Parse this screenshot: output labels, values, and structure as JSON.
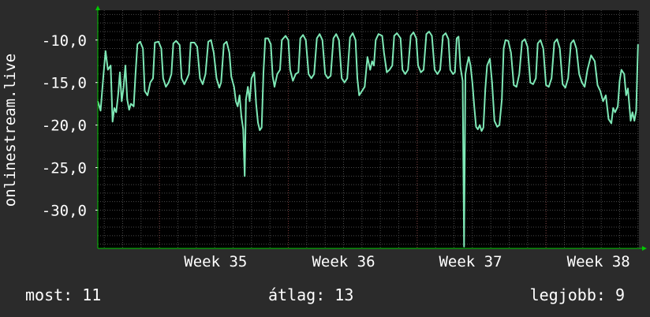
{
  "chart_data": {
    "type": "line",
    "ylabel": "onlinestream.live",
    "ylim": [
      -34.5,
      -6.5
    ],
    "yticks": [
      -10,
      -15,
      -20,
      -25,
      -30
    ],
    "ytick_labels": [
      "-10,0",
      "-15,0",
      "-20,0",
      "-25,0",
      "-30,0"
    ],
    "xlim": [
      0,
      26.85
    ],
    "xticks": [
      {
        "x": 4.5,
        "label": "Week 35"
      },
      {
        "x": 11.5,
        "label": "Week 36"
      },
      {
        "x": 18.5,
        "label": "Week 37"
      },
      {
        "x": 25.5,
        "label": "Week 38"
      }
    ],
    "grid": true,
    "colors": {
      "line": "#7ee8b6",
      "axis": "#00c800",
      "grid_minor": "#4a4a4a",
      "grid_major": "#7a3c3c"
    },
    "series": [
      {
        "points": [
          [
            0.0,
            -17.2
          ],
          [
            0.15,
            -18.3
          ],
          [
            0.3,
            -14.3
          ],
          [
            0.42,
            -11.3
          ],
          [
            0.55,
            -13.5
          ],
          [
            0.7,
            -13.0
          ],
          [
            0.8,
            -19.6
          ],
          [
            0.9,
            -18.0
          ],
          [
            1.0,
            -18.5
          ],
          [
            1.1,
            -16.5
          ],
          [
            1.2,
            -13.8
          ],
          [
            1.3,
            -17.2
          ],
          [
            1.4,
            -15.5
          ],
          [
            1.5,
            -13.0
          ],
          [
            1.6,
            -17.0
          ],
          [
            1.7,
            -18.2
          ],
          [
            1.8,
            -17.5
          ],
          [
            1.95,
            -17.8
          ],
          [
            2.05,
            -14.0
          ],
          [
            2.15,
            -10.5
          ],
          [
            2.3,
            -10.2
          ],
          [
            2.45,
            -11.0
          ],
          [
            2.55,
            -16.0
          ],
          [
            2.7,
            -16.5
          ],
          [
            2.85,
            -15.0
          ],
          [
            3.0,
            -14.5
          ],
          [
            3.1,
            -10.3
          ],
          [
            3.3,
            -10.2
          ],
          [
            3.45,
            -11.0
          ],
          [
            3.55,
            -14.5
          ],
          [
            3.7,
            -15.5
          ],
          [
            3.85,
            -15.0
          ],
          [
            4.0,
            -14.0
          ],
          [
            4.1,
            -10.4
          ],
          [
            4.25,
            -10.1
          ],
          [
            4.45,
            -10.6
          ],
          [
            4.55,
            -14.5
          ],
          [
            4.7,
            -15.2
          ],
          [
            4.85,
            -14.5
          ],
          [
            4.95,
            -14.0
          ],
          [
            5.05,
            -10.3
          ],
          [
            5.25,
            -10.3
          ],
          [
            5.4,
            -10.8
          ],
          [
            5.55,
            -14.5
          ],
          [
            5.7,
            -15.2
          ],
          [
            5.85,
            -14.0
          ],
          [
            6.0,
            -10.2
          ],
          [
            6.15,
            -10.0
          ],
          [
            6.3,
            -11.5
          ],
          [
            6.45,
            -14.5
          ],
          [
            6.6,
            -15.6
          ],
          [
            6.7,
            -15.0
          ],
          [
            6.85,
            -10.5
          ],
          [
            7.0,
            -10.2
          ],
          [
            7.15,
            -11.5
          ],
          [
            7.25,
            -14.3
          ],
          [
            7.4,
            -15.5
          ],
          [
            7.5,
            -17.2
          ],
          [
            7.6,
            -17.8
          ],
          [
            7.7,
            -16.5
          ],
          [
            7.8,
            -19.0
          ],
          [
            7.9,
            -20.5
          ],
          [
            7.98,
            -26.0
          ],
          [
            8.05,
            -17.0
          ],
          [
            8.15,
            -15.5
          ],
          [
            8.25,
            -17.2
          ],
          [
            8.35,
            -14.5
          ],
          [
            8.5,
            -13.8
          ],
          [
            8.6,
            -17.5
          ],
          [
            8.7,
            -19.7
          ],
          [
            8.8,
            -20.6
          ],
          [
            8.9,
            -20.3
          ],
          [
            9.0,
            -13.8
          ],
          [
            9.1,
            -9.8
          ],
          [
            9.25,
            -9.8
          ],
          [
            9.4,
            -10.5
          ],
          [
            9.5,
            -14.3
          ],
          [
            9.6,
            -15.5
          ],
          [
            9.75,
            -14.0
          ],
          [
            9.9,
            -13.5
          ],
          [
            10.0,
            -10.0
          ],
          [
            10.2,
            -9.5
          ],
          [
            10.35,
            -10.0
          ],
          [
            10.45,
            -13.5
          ],
          [
            10.6,
            -14.8
          ],
          [
            10.75,
            -14.0
          ],
          [
            10.9,
            -13.8
          ],
          [
            11.0,
            -9.8
          ],
          [
            11.15,
            -9.4
          ],
          [
            11.3,
            -10.0
          ],
          [
            11.45,
            -14.0
          ],
          [
            11.6,
            -14.5
          ],
          [
            11.75,
            -14.0
          ],
          [
            11.9,
            -9.8
          ],
          [
            12.05,
            -9.3
          ],
          [
            12.2,
            -10.0
          ],
          [
            12.35,
            -14.0
          ],
          [
            12.5,
            -14.5
          ],
          [
            12.65,
            -14.2
          ],
          [
            12.8,
            -9.8
          ],
          [
            12.95,
            -9.3
          ],
          [
            13.1,
            -10.0
          ],
          [
            13.25,
            -14.5
          ],
          [
            13.4,
            -15.0
          ],
          [
            13.55,
            -14.5
          ],
          [
            13.7,
            -9.7
          ],
          [
            13.85,
            -9.2
          ],
          [
            14.0,
            -10.0
          ],
          [
            14.1,
            -14.5
          ],
          [
            14.2,
            -16.5
          ],
          [
            14.35,
            -16.0
          ],
          [
            14.5,
            -15.5
          ],
          [
            14.65,
            -12.0
          ],
          [
            14.8,
            -13.5
          ],
          [
            14.9,
            -12.5
          ],
          [
            15.0,
            -13.0
          ],
          [
            15.1,
            -10.0
          ],
          [
            15.25,
            -9.3
          ],
          [
            15.45,
            -9.5
          ],
          [
            15.55,
            -11.5
          ],
          [
            15.7,
            -13.8
          ],
          [
            15.85,
            -13.5
          ],
          [
            16.0,
            -13.0
          ],
          [
            16.1,
            -9.5
          ],
          [
            16.25,
            -9.2
          ],
          [
            16.45,
            -9.8
          ],
          [
            16.55,
            -13.5
          ],
          [
            16.7,
            -14.0
          ],
          [
            16.85,
            -13.5
          ],
          [
            17.0,
            -9.5
          ],
          [
            17.15,
            -9.1
          ],
          [
            17.3,
            -9.8
          ],
          [
            17.4,
            -13.0
          ],
          [
            17.55,
            -13.8
          ],
          [
            17.7,
            -13.5
          ],
          [
            17.85,
            -9.3
          ],
          [
            18.0,
            -9.0
          ],
          [
            18.15,
            -9.5
          ],
          [
            18.3,
            -13.5
          ],
          [
            18.45,
            -14.0
          ],
          [
            18.6,
            -13.5
          ],
          [
            18.75,
            -9.5
          ],
          [
            18.9,
            -9.2
          ],
          [
            19.05,
            -9.9
          ],
          [
            19.15,
            -13.5
          ],
          [
            19.3,
            -14.0
          ],
          [
            19.4,
            -13.8
          ],
          [
            19.5,
            -9.8
          ],
          [
            19.6,
            -9.6
          ],
          [
            19.7,
            -13.2
          ],
          [
            19.82,
            -14.8
          ],
          [
            19.9,
            -34.3
          ],
          [
            19.97,
            -14.0
          ],
          [
            20.05,
            -13.0
          ],
          [
            20.15,
            -12.0
          ],
          [
            20.25,
            -13.0
          ],
          [
            20.35,
            -15.0
          ],
          [
            20.45,
            -17.8
          ],
          [
            20.55,
            -20.2
          ],
          [
            20.65,
            -20.5
          ],
          [
            20.75,
            -20.0
          ],
          [
            20.85,
            -20.7
          ],
          [
            20.95,
            -20.3
          ],
          [
            21.05,
            -15.8
          ],
          [
            21.15,
            -13.0
          ],
          [
            21.3,
            -12.2
          ],
          [
            21.42,
            -15.0
          ],
          [
            21.55,
            -19.5
          ],
          [
            21.7,
            -20.2
          ],
          [
            21.82,
            -20.0
          ],
          [
            21.95,
            -17.0
          ],
          [
            22.05,
            -11.0
          ],
          [
            22.15,
            -10.0
          ],
          [
            22.3,
            -10.1
          ],
          [
            22.45,
            -11.5
          ],
          [
            22.6,
            -15.3
          ],
          [
            22.75,
            -15.5
          ],
          [
            22.9,
            -14.0
          ],
          [
            23.05,
            -10.2
          ],
          [
            23.2,
            -9.9
          ],
          [
            23.35,
            -10.8
          ],
          [
            23.5,
            -15.0
          ],
          [
            23.65,
            -15.2
          ],
          [
            23.8,
            -14.5
          ],
          [
            23.9,
            -10.4
          ],
          [
            24.05,
            -10.0
          ],
          [
            24.2,
            -11.0
          ],
          [
            24.35,
            -15.3
          ],
          [
            24.5,
            -15.5
          ],
          [
            24.65,
            -14.5
          ],
          [
            24.8,
            -10.3
          ],
          [
            24.95,
            -9.9
          ],
          [
            25.1,
            -11.0
          ],
          [
            25.25,
            -15.2
          ],
          [
            25.4,
            -15.6
          ],
          [
            25.55,
            -14.5
          ],
          [
            25.7,
            -10.4
          ],
          [
            25.85,
            -10.0
          ],
          [
            26.0,
            -11.0
          ],
          [
            26.15,
            -14.0
          ],
          [
            26.3,
            -15.0
          ],
          [
            26.45,
            -15.5
          ],
          [
            26.6,
            -13.5
          ],
          [
            26.8,
            -11.8
          ],
          [
            27.0,
            -12.5
          ],
          [
            27.15,
            -15.3
          ],
          [
            27.3,
            -16.0
          ],
          [
            27.45,
            -17.2
          ],
          [
            27.6,
            -16.5
          ],
          [
            27.75,
            -19.3
          ],
          [
            27.9,
            -19.8
          ],
          [
            28.0,
            -18.0
          ],
          [
            28.1,
            -18.5
          ],
          [
            28.25,
            -17.8
          ],
          [
            28.35,
            -14.8
          ],
          [
            28.45,
            -13.5
          ],
          [
            28.6,
            -14.0
          ],
          [
            28.7,
            -16.5
          ],
          [
            28.8,
            -15.7
          ],
          [
            28.95,
            -19.5
          ],
          [
            29.05,
            -18.5
          ],
          [
            29.15,
            -19.5
          ],
          [
            29.25,
            -18.3
          ],
          [
            29.35,
            -10.5
          ]
        ]
      }
    ]
  },
  "stats": {
    "now": "most: 11",
    "average": "átlag: 13",
    "best": "legjobb: 9"
  }
}
